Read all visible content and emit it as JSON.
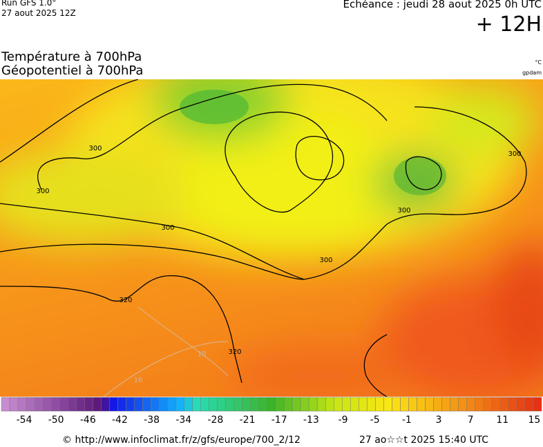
{
  "header": {
    "run": "Run GFS 1.0°",
    "run_date": "27 aout 2025 12Z",
    "echeance": "Echéance : jeudi 28 aout 2025 0h UTC",
    "lead": "+ 12H"
  },
  "titles": {
    "line1": "Température à 700hPa",
    "line2": "Géopotentiel à 700hPa",
    "unit_temp": "°C",
    "unit_geo": "gpdam"
  },
  "map": {
    "contour_labels": [
      "300",
      "300",
      "300",
      "300",
      "300",
      "300",
      "320",
      "320",
      "10",
      "10"
    ]
  },
  "colorbar": {
    "labels": [
      -54,
      -50,
      -46,
      -42,
      -38,
      -34,
      -28,
      -21,
      -17,
      -13,
      -9,
      -5,
      -1,
      3,
      7,
      11,
      15
    ]
  },
  "footer": {
    "source": "© http://www.infoclimat.fr/z/gfs/europe/700_2/12",
    "timestamp": "27 ao☆☆t 2025 15:40 UTC"
  }
}
